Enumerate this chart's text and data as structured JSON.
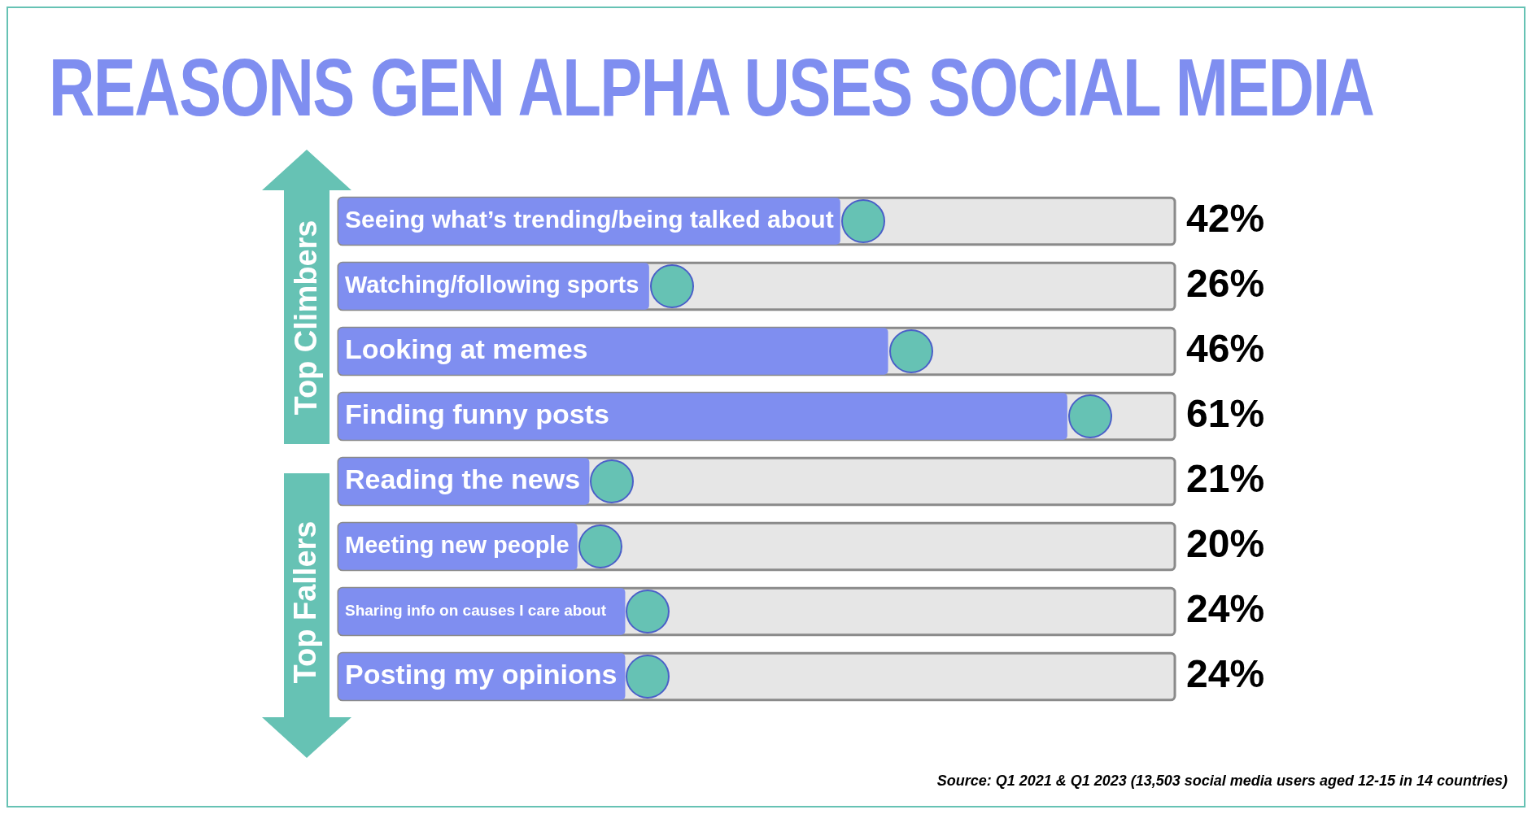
{
  "chart_data": {
    "type": "bar",
    "orientation": "horizontal",
    "title": "REASONS GEN ALPHA USES SOCIAL MEDIA",
    "categories": [
      "Seeing what’s trending/being talked about",
      "Watching/following sports",
      "Looking at memes",
      "Finding funny posts",
      "Reading the news",
      "Meeting new people",
      "Sharing info on causes I care about",
      "Posting my opinions"
    ],
    "values": [
      42,
      26,
      46,
      61,
      21,
      20,
      24,
      24
    ],
    "value_labels": [
      "42%",
      "26%",
      "46%",
      "61%",
      "21%",
      "20%",
      "24%",
      "24%"
    ],
    "color": "#7f8ef0",
    "legend": false,
    "annotations": [
      "Top Climbers",
      "Top Fallers",
      "Source: Q1 2021 & Q1 2023 (13,503 social media users aged 12-15 in 14 countries)"
    ]
  }
}
